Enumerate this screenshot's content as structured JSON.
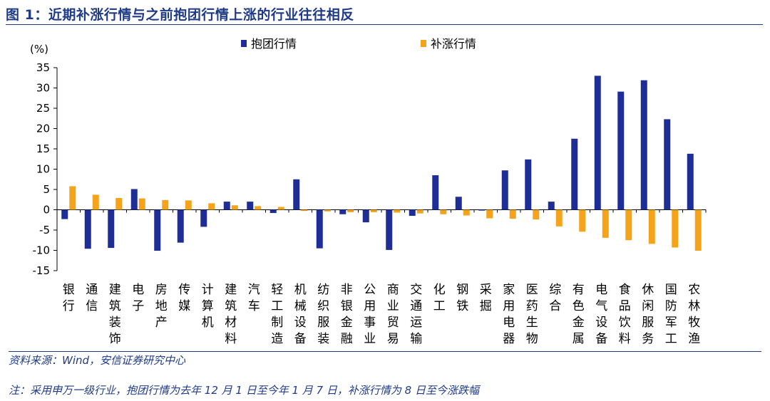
{
  "title": "图 1：近期补涨行情与之前抱团行情上涨的行业往往相反",
  "source": "资料来源：Wind，安信证券研究中心",
  "note": "注：采用申万一级行业，抱团行情为去年 12 月 1 日至今年 1 月 7 日，补涨行情为 8 日至今涨跌幅",
  "colors": {
    "title": "#1f3b87",
    "series1": "#1f2e96",
    "series2": "#f5a31a"
  },
  "chart_data": {
    "type": "bar",
    "ylabel": "(%)",
    "ylim": [
      -15,
      35
    ],
    "yticks": [
      35,
      30,
      25,
      20,
      15,
      10,
      5,
      0,
      -5,
      -10,
      -15
    ],
    "legend_position": "top-center",
    "grid": false,
    "categories": [
      "银行",
      "通信",
      "建筑装饰",
      "电子",
      "房地产",
      "传媒",
      "计算机",
      "建筑材料",
      "汽车",
      "轻工制造",
      "机械设备",
      "纺织服装",
      "非银金融",
      "公用事业",
      "商业贸易",
      "交通运输",
      "化工",
      "钢铁",
      "采掘",
      "家用电器",
      "医药生物",
      "综合",
      "有色金属",
      "电气设备",
      "食品饮料",
      "休闲服务",
      "国防军工",
      "农林牧渔"
    ],
    "series": [
      {
        "name": "抱团行情",
        "values": [
          -2.3,
          -9.6,
          -9.4,
          5.1,
          -10.1,
          -8.1,
          -4.2,
          2.0,
          2.0,
          -0.8,
          7.5,
          -9.5,
          -1.1,
          -3.1,
          -9.9,
          -1.5,
          8.5,
          3.2,
          -0.2,
          9.7,
          12.4,
          2.0,
          17.5,
          33.0,
          29.1,
          31.9,
          22.3,
          13.8
        ]
      },
      {
        "name": "补涨行情",
        "values": [
          5.8,
          3.7,
          2.9,
          2.8,
          2.4,
          2.3,
          1.6,
          1.1,
          0.9,
          0.7,
          -0.3,
          -0.4,
          -0.6,
          -0.6,
          -0.7,
          -0.9,
          -1.1,
          -1.4,
          -2.1,
          -2.2,
          -2.4,
          -4.1,
          -5.4,
          -6.9,
          -7.5,
          -8.4,
          -9.3,
          -10.1
        ]
      }
    ]
  }
}
